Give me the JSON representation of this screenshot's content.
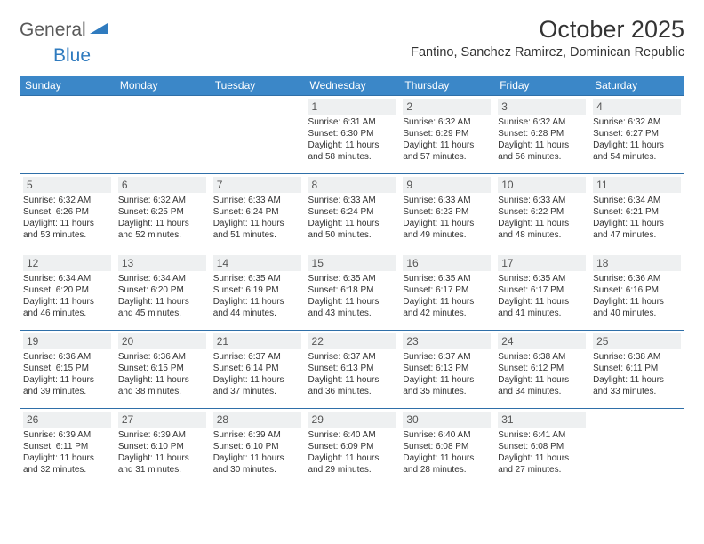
{
  "logo": {
    "text1": "General",
    "text2": "Blue",
    "color1": "#5a5a5a",
    "color2": "#2f7bbf"
  },
  "header": {
    "month": "October 2025",
    "location": "Fantino, Sanchez Ramirez, Dominican Republic"
  },
  "colors": {
    "header_bg": "#3b87c8",
    "header_text": "#ffffff",
    "row_border": "#2f6fa8",
    "daynum_bg": "#eef0f1",
    "daynum_text": "#555555",
    "info_text": "#333333"
  },
  "weekdays": [
    "Sunday",
    "Monday",
    "Tuesday",
    "Wednesday",
    "Thursday",
    "Friday",
    "Saturday"
  ],
  "weeks": [
    [
      null,
      null,
      null,
      {
        "n": "1",
        "sr": "6:31 AM",
        "ss": "6:30 PM",
        "dl": "11 hours and 58 minutes."
      },
      {
        "n": "2",
        "sr": "6:32 AM",
        "ss": "6:29 PM",
        "dl": "11 hours and 57 minutes."
      },
      {
        "n": "3",
        "sr": "6:32 AM",
        "ss": "6:28 PM",
        "dl": "11 hours and 56 minutes."
      },
      {
        "n": "4",
        "sr": "6:32 AM",
        "ss": "6:27 PM",
        "dl": "11 hours and 54 minutes."
      }
    ],
    [
      {
        "n": "5",
        "sr": "6:32 AM",
        "ss": "6:26 PM",
        "dl": "11 hours and 53 minutes."
      },
      {
        "n": "6",
        "sr": "6:32 AM",
        "ss": "6:25 PM",
        "dl": "11 hours and 52 minutes."
      },
      {
        "n": "7",
        "sr": "6:33 AM",
        "ss": "6:24 PM",
        "dl": "11 hours and 51 minutes."
      },
      {
        "n": "8",
        "sr": "6:33 AM",
        "ss": "6:24 PM",
        "dl": "11 hours and 50 minutes."
      },
      {
        "n": "9",
        "sr": "6:33 AM",
        "ss": "6:23 PM",
        "dl": "11 hours and 49 minutes."
      },
      {
        "n": "10",
        "sr": "6:33 AM",
        "ss": "6:22 PM",
        "dl": "11 hours and 48 minutes."
      },
      {
        "n": "11",
        "sr": "6:34 AM",
        "ss": "6:21 PM",
        "dl": "11 hours and 47 minutes."
      }
    ],
    [
      {
        "n": "12",
        "sr": "6:34 AM",
        "ss": "6:20 PM",
        "dl": "11 hours and 46 minutes."
      },
      {
        "n": "13",
        "sr": "6:34 AM",
        "ss": "6:20 PM",
        "dl": "11 hours and 45 minutes."
      },
      {
        "n": "14",
        "sr": "6:35 AM",
        "ss": "6:19 PM",
        "dl": "11 hours and 44 minutes."
      },
      {
        "n": "15",
        "sr": "6:35 AM",
        "ss": "6:18 PM",
        "dl": "11 hours and 43 minutes."
      },
      {
        "n": "16",
        "sr": "6:35 AM",
        "ss": "6:17 PM",
        "dl": "11 hours and 42 minutes."
      },
      {
        "n": "17",
        "sr": "6:35 AM",
        "ss": "6:17 PM",
        "dl": "11 hours and 41 minutes."
      },
      {
        "n": "18",
        "sr": "6:36 AM",
        "ss": "6:16 PM",
        "dl": "11 hours and 40 minutes."
      }
    ],
    [
      {
        "n": "19",
        "sr": "6:36 AM",
        "ss": "6:15 PM",
        "dl": "11 hours and 39 minutes."
      },
      {
        "n": "20",
        "sr": "6:36 AM",
        "ss": "6:15 PM",
        "dl": "11 hours and 38 minutes."
      },
      {
        "n": "21",
        "sr": "6:37 AM",
        "ss": "6:14 PM",
        "dl": "11 hours and 37 minutes."
      },
      {
        "n": "22",
        "sr": "6:37 AM",
        "ss": "6:13 PM",
        "dl": "11 hours and 36 minutes."
      },
      {
        "n": "23",
        "sr": "6:37 AM",
        "ss": "6:13 PM",
        "dl": "11 hours and 35 minutes."
      },
      {
        "n": "24",
        "sr": "6:38 AM",
        "ss": "6:12 PM",
        "dl": "11 hours and 34 minutes."
      },
      {
        "n": "25",
        "sr": "6:38 AM",
        "ss": "6:11 PM",
        "dl": "11 hours and 33 minutes."
      }
    ],
    [
      {
        "n": "26",
        "sr": "6:39 AM",
        "ss": "6:11 PM",
        "dl": "11 hours and 32 minutes."
      },
      {
        "n": "27",
        "sr": "6:39 AM",
        "ss": "6:10 PM",
        "dl": "11 hours and 31 minutes."
      },
      {
        "n": "28",
        "sr": "6:39 AM",
        "ss": "6:10 PM",
        "dl": "11 hours and 30 minutes."
      },
      {
        "n": "29",
        "sr": "6:40 AM",
        "ss": "6:09 PM",
        "dl": "11 hours and 29 minutes."
      },
      {
        "n": "30",
        "sr": "6:40 AM",
        "ss": "6:08 PM",
        "dl": "11 hours and 28 minutes."
      },
      {
        "n": "31",
        "sr": "6:41 AM",
        "ss": "6:08 PM",
        "dl": "11 hours and 27 minutes."
      },
      null
    ]
  ],
  "labels": {
    "sunrise": "Sunrise:",
    "sunset": "Sunset:",
    "daylight": "Daylight:"
  }
}
